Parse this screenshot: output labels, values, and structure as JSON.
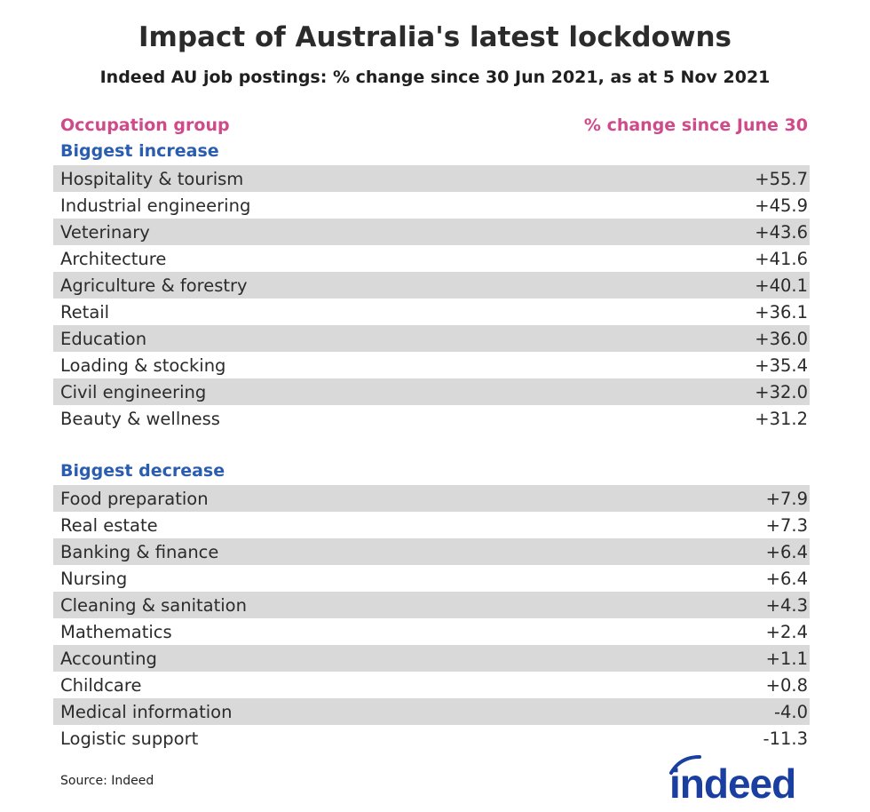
{
  "chart_data": {
    "type": "table",
    "title": "Impact of Australia's latest lockdowns",
    "subtitle": "Indeed AU job postings: % change since 30 Jun 2021, as at 5 Nov 2021",
    "columns": [
      "Occupation group",
      "% change since June 30"
    ],
    "sections": [
      {
        "name": "Biggest increase",
        "rows": [
          {
            "label": "Hospitality & tourism",
            "value": "+55.7"
          },
          {
            "label": "Industrial engineering",
            "value": "+45.9"
          },
          {
            "label": "Veterinary",
            "value": "+43.6"
          },
          {
            "label": "Architecture",
            "value": "+41.6"
          },
          {
            "label": "Agriculture & forestry",
            "value": "+40.1"
          },
          {
            "label": "Retail",
            "value": "+36.1"
          },
          {
            "label": "Education",
            "value": "+36.0"
          },
          {
            "label": "Loading & stocking",
            "value": "+35.4"
          },
          {
            "label": "Civil engineering",
            "value": "+32.0"
          },
          {
            "label": "Beauty & wellness",
            "value": "+31.2"
          }
        ]
      },
      {
        "name": "Biggest decrease",
        "rows": [
          {
            "label": "Food preparation",
            "value": "+7.9"
          },
          {
            "label": "Real estate",
            "value": "+7.3"
          },
          {
            "label": "Banking & finance",
            "value": "+6.4"
          },
          {
            "label": "Nursing",
            "value": "+6.4"
          },
          {
            "label": "Cleaning & sanitation",
            "value": "+4.3"
          },
          {
            "label": "Mathematics",
            "value": "+2.4"
          },
          {
            "label": "Accounting",
            "value": "+1.1"
          },
          {
            "label": "Childcare",
            "value": "+0.8"
          },
          {
            "label": "Medical information",
            "value": "-4.0"
          },
          {
            "label": "Logistic support",
            "value": "-11.3"
          }
        ]
      }
    ],
    "source": "Source: Indeed",
    "logo": "indeed"
  },
  "colors": {
    "header": "#d04a8a",
    "section": "#2a5db0",
    "shade": "#d9d9d9",
    "logo": "#1a3fa0"
  }
}
